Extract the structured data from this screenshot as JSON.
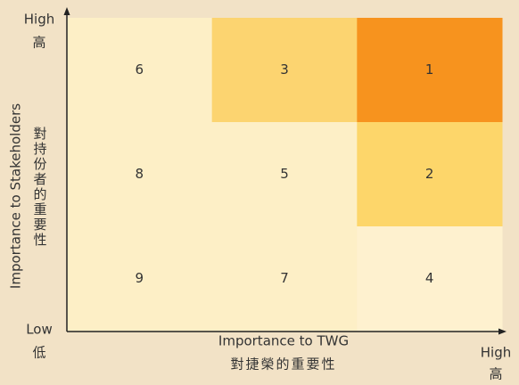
{
  "y_axis": {
    "high": "High",
    "high_zh": "高",
    "low": "Low",
    "low_zh": "低",
    "label": "Importance to Stakeholders",
    "label_zh": "對持份者的重要性"
  },
  "x_axis": {
    "label": "Importance to TWG",
    "label_zh": "對捷榮的重要性",
    "high": "High",
    "high_zh": "高"
  },
  "matrix": {
    "rows": [
      [
        {
          "label": 6,
          "color": "#fdefc6"
        },
        {
          "label": 3,
          "color": "#fcd470"
        },
        {
          "label": 1,
          "color": "#f7931e"
        }
      ],
      [
        {
          "label": 8,
          "color": "#fdefc6"
        },
        {
          "label": 5,
          "color": "#fdefc6"
        },
        {
          "label": 2,
          "color": "#fdd66a"
        }
      ],
      [
        {
          "label": 9,
          "color": "#fdefc6"
        },
        {
          "label": 7,
          "color": "#fdefc6"
        },
        {
          "label": 4,
          "color": "#fef1cf"
        }
      ]
    ]
  }
}
